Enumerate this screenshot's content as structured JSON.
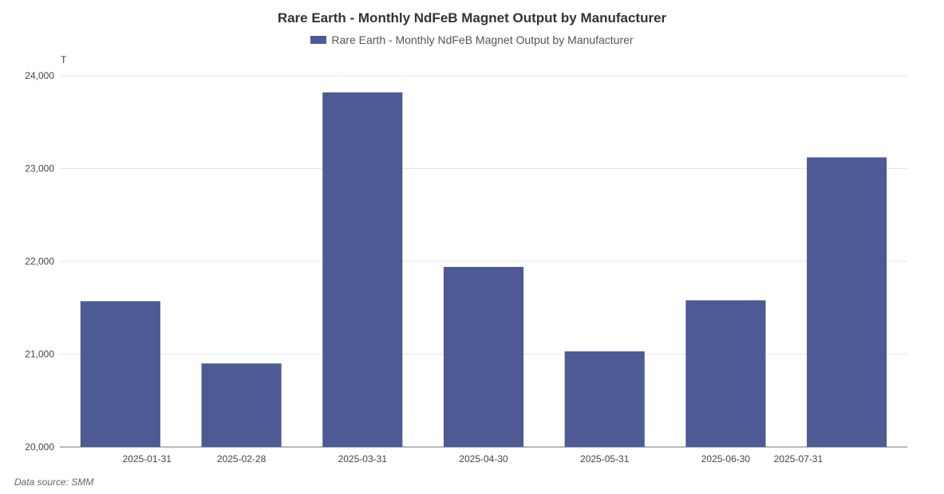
{
  "chart_data": {
    "type": "bar",
    "title": "Rare Earth - Monthly NdFeB Magnet Output by Manufacturer",
    "unit": "T",
    "categories": [
      "2025-01-31",
      "2025-02-28",
      "2025-03-31",
      "2025-04-30",
      "2025-05-31",
      "2025-06-30",
      "2025-07-31"
    ],
    "series": [
      {
        "name": "Rare Earth - Monthly NdFeB Magnet Output by Manufacturer",
        "color": "#4e5a94",
        "values": [
          21570,
          20900,
          23820,
          21940,
          21030,
          21580,
          23120
        ]
      }
    ],
    "ylim": [
      20000,
      24000
    ],
    "yticks": [
      20000,
      21000,
      22000,
      23000,
      24000
    ],
    "ytick_labels": [
      "20,000",
      "21,000",
      "22,000",
      "23,000",
      "24,000"
    ],
    "grid": true,
    "legend_position": "top-center"
  },
  "footer": {
    "source": "Data source:  SMM"
  }
}
